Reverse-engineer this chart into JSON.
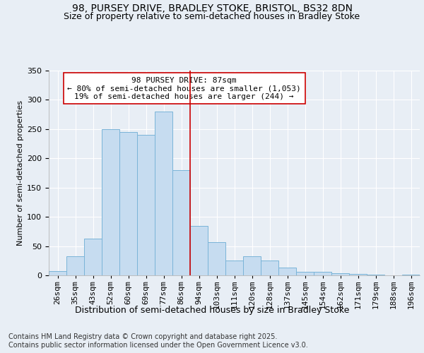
{
  "title1": "98, PURSEY DRIVE, BRADLEY STOKE, BRISTOL, BS32 8DN",
  "title2": "Size of property relative to semi-detached houses in Bradley Stoke",
  "xlabel": "Distribution of semi-detached houses by size in Bradley Stoke",
  "ylabel": "Number of semi-detached properties",
  "footnote1": "Contains HM Land Registry data © Crown copyright and database right 2025.",
  "footnote2": "Contains public sector information licensed under the Open Government Licence v3.0.",
  "bin_labels": [
    "26sqm",
    "35sqm",
    "43sqm",
    "52sqm",
    "60sqm",
    "69sqm",
    "77sqm",
    "86sqm",
    "94sqm",
    "103sqm",
    "111sqm",
    "120sqm",
    "128sqm",
    "137sqm",
    "145sqm",
    "154sqm",
    "162sqm",
    "171sqm",
    "179sqm",
    "188sqm",
    "196sqm"
  ],
  "bar_values": [
    7,
    33,
    63,
    250,
    245,
    240,
    280,
    180,
    85,
    57,
    25,
    32,
    25,
    13,
    6,
    6,
    4,
    2,
    1,
    0,
    1
  ],
  "bar_color": "#c6dcf0",
  "bar_edge_color": "#7ab4d8",
  "vline_x": 7.5,
  "vline_color": "#cc0000",
  "annotation_title": "98 PURSEY DRIVE: 87sqm",
  "annotation_line1": "← 80% of semi-detached houses are smaller (1,053)",
  "annotation_line2": "19% of semi-detached houses are larger (244) →",
  "annotation_box_facecolor": "white",
  "annotation_box_edgecolor": "#cc0000",
  "ylim": [
    0,
    350
  ],
  "yticks": [
    0,
    50,
    100,
    150,
    200,
    250,
    300,
    350
  ],
  "background_color": "#e8eef5",
  "plot_bg_color": "#e8eef5",
  "title1_fontsize": 10,
  "title2_fontsize": 9,
  "xlabel_fontsize": 9,
  "ylabel_fontsize": 8,
  "tick_fontsize": 8,
  "annot_fontsize": 8,
  "footnote_fontsize": 7
}
